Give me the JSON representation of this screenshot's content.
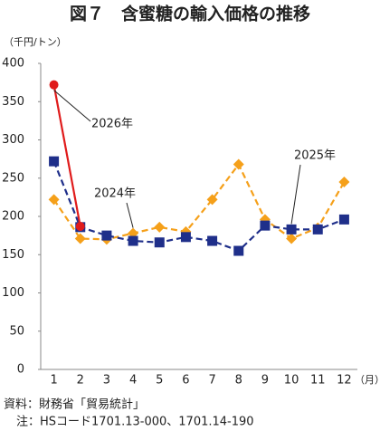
{
  "chart_data": {
    "type": "line",
    "title": "図７　含蜜糖の輸入価格の推移",
    "y_label": "（千円/トン）",
    "x_label": "（月）",
    "categories": [
      "1",
      "2",
      "3",
      "4",
      "5",
      "6",
      "7",
      "8",
      "9",
      "10",
      "11",
      "12"
    ],
    "series": [
      {
        "name": "2024年",
        "color": "#f5a01a",
        "marker": "diamond",
        "line_style": "dashed",
        "values": [
          222,
          171,
          170,
          178,
          186,
          180,
          222,
          268,
          196,
          171,
          185,
          245
        ]
      },
      {
        "name": "2025年",
        "color": "#1f2f8a",
        "marker": "square",
        "line_style": "dashed",
        "values": [
          272,
          186,
          175,
          168,
          166,
          173,
          168,
          155,
          188,
          183,
          183,
          196
        ]
      },
      {
        "name": "2026年",
        "color": "#e01b1b",
        "marker": "circle",
        "line_style": "solid",
        "values": [
          372,
          187,
          null,
          null,
          null,
          null,
          null,
          null,
          null,
          null,
          null,
          null
        ]
      }
    ],
    "ylim": [
      0,
      400
    ],
    "yticks": [
      0,
      50,
      100,
      150,
      200,
      250,
      300,
      350,
      400
    ],
    "source": "資料：財務省「貿易統計」",
    "note": "注：HSコード1701.13-000、1701.14-190"
  }
}
